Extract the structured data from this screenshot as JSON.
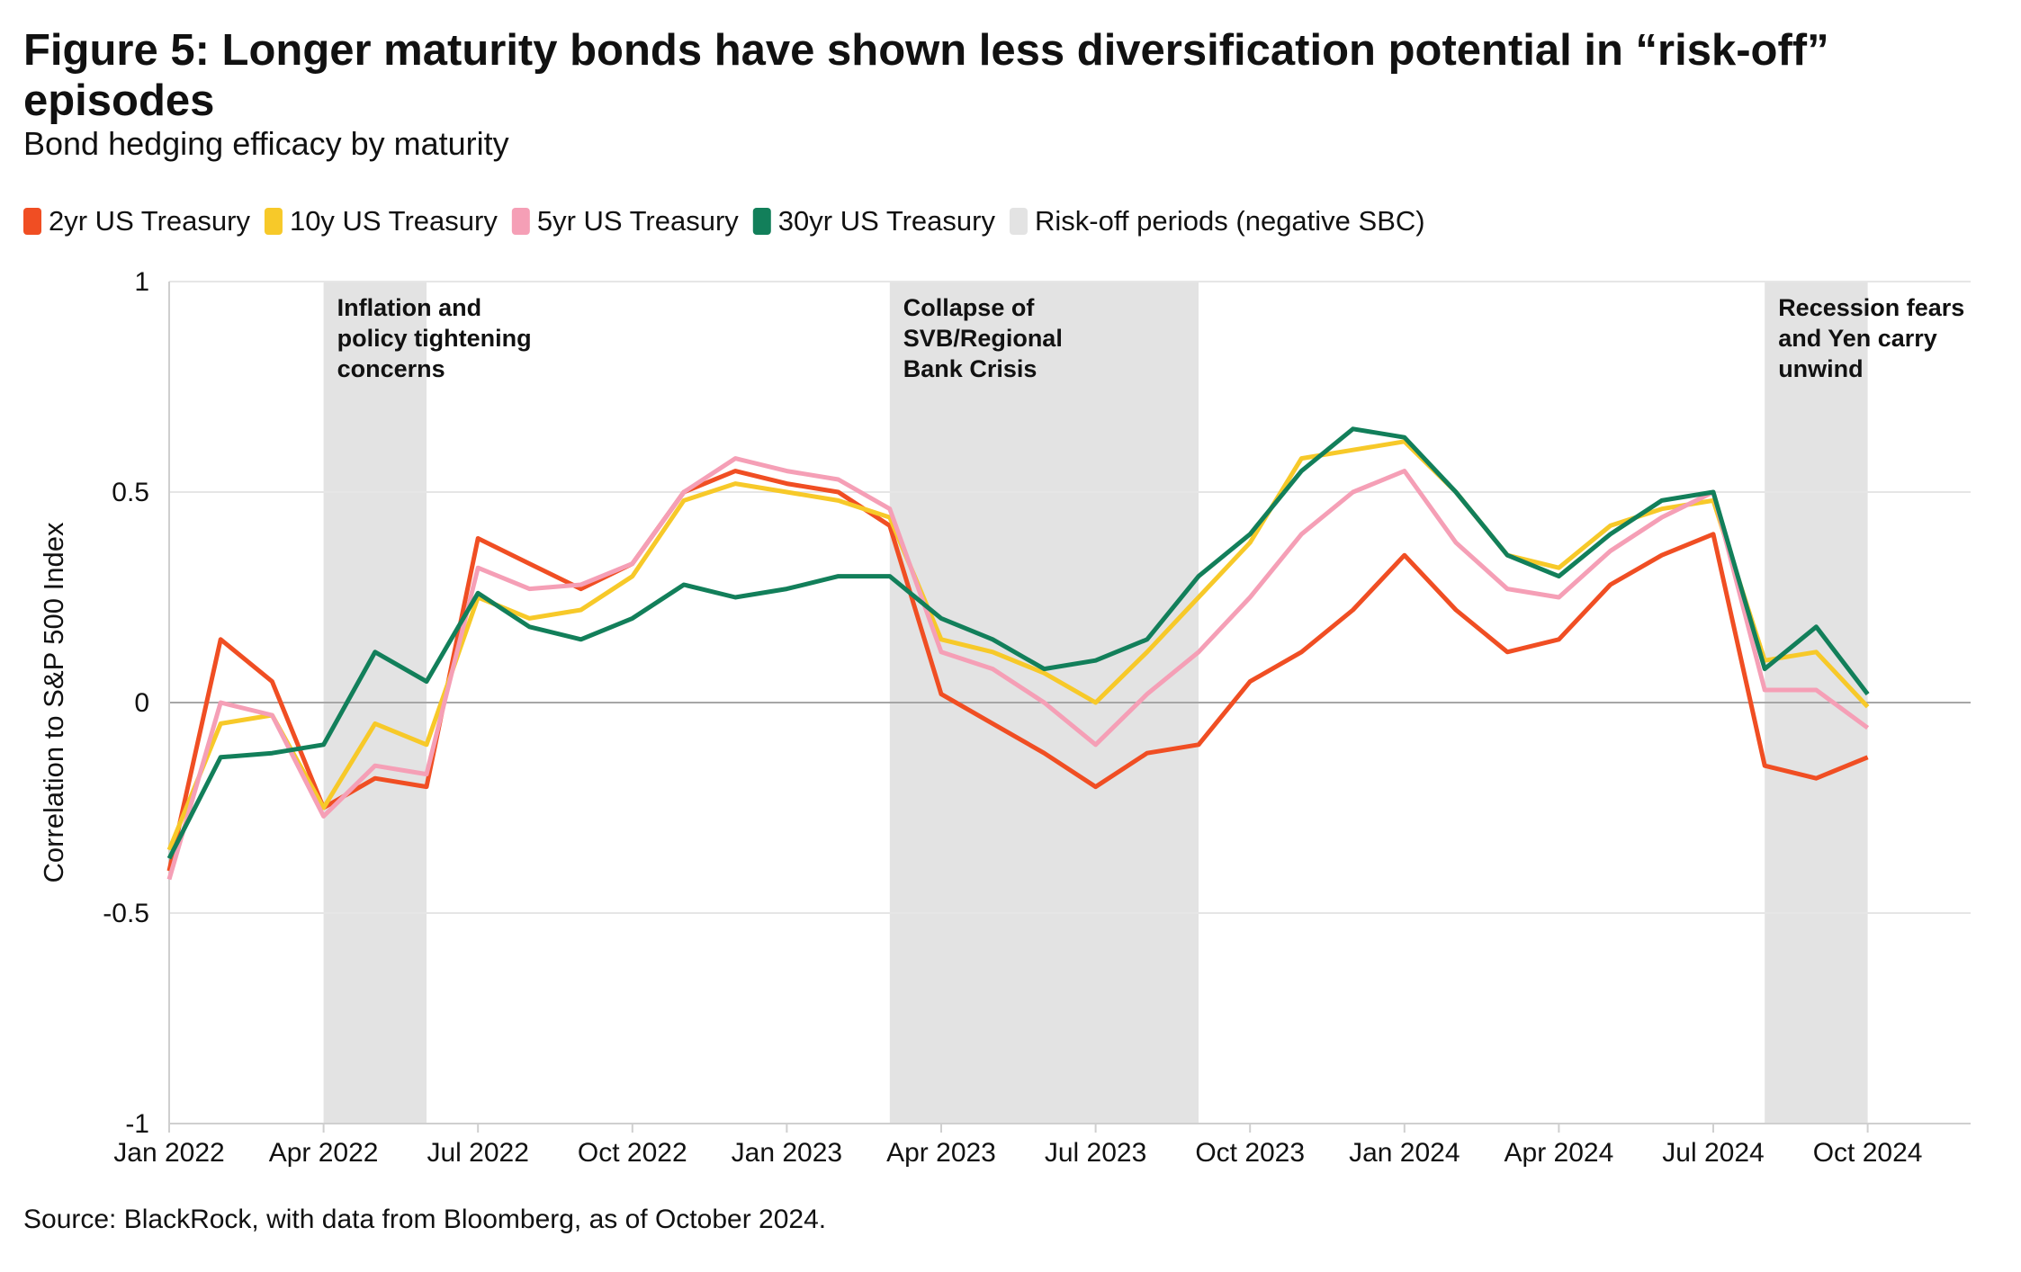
{
  "chart_data": {
    "type": "line",
    "title": "Figure 5: Longer maturity bonds have shown less diversification potential in “risk-off” episodes",
    "subtitle": "Bond hedging efficacy by maturity",
    "y_label": "Correlation to S&P 500 Index",
    "source": "Source: BlackRock, with data from Bloomberg, as of October 2024.",
    "x": [
      "2022-01",
      "2022-02",
      "2022-03",
      "2022-04",
      "2022-05",
      "2022-06",
      "2022-07",
      "2022-08",
      "2022-09",
      "2022-10",
      "2022-11",
      "2022-12",
      "2023-01",
      "2023-02",
      "2023-03",
      "2023-04",
      "2023-05",
      "2023-06",
      "2023-07",
      "2023-08",
      "2023-09",
      "2023-10",
      "2023-11",
      "2023-12",
      "2024-01",
      "2024-02",
      "2024-03",
      "2024-04",
      "2024-05",
      "2024-06",
      "2024-07",
      "2024-08",
      "2024-09",
      "2024-10"
    ],
    "series": [
      {
        "name": "2yr US Treasury",
        "color": "#f04e23",
        "values": [
          -0.4,
          0.15,
          0.05,
          -0.25,
          -0.18,
          -0.2,
          0.39,
          0.33,
          0.27,
          0.33,
          0.5,
          0.55,
          0.52,
          0.5,
          0.42,
          0.02,
          -0.05,
          -0.12,
          -0.2,
          -0.12,
          -0.1,
          0.05,
          0.12,
          0.22,
          0.35,
          0.22,
          0.12,
          0.15,
          0.28,
          0.35,
          0.4,
          -0.15,
          -0.18,
          -0.13
        ]
      },
      {
        "name": "10y US Treasury",
        "color": "#f7c929",
        "values": [
          -0.35,
          -0.05,
          -0.03,
          -0.25,
          -0.05,
          -0.1,
          0.25,
          0.2,
          0.22,
          0.3,
          0.48,
          0.52,
          0.5,
          0.48,
          0.44,
          0.15,
          0.12,
          0.07,
          0.0,
          0.12,
          0.25,
          0.38,
          0.58,
          0.6,
          0.62,
          0.5,
          0.35,
          0.32,
          0.42,
          0.46,
          0.48,
          0.1,
          0.12,
          -0.01
        ]
      },
      {
        "name": "5yr US Treasury",
        "color": "#f59fb6",
        "values": [
          -0.42,
          0.0,
          -0.03,
          -0.27,
          -0.15,
          -0.17,
          0.32,
          0.27,
          0.28,
          0.33,
          0.5,
          0.58,
          0.55,
          0.53,
          0.46,
          0.12,
          0.08,
          0.0,
          -0.1,
          0.02,
          0.12,
          0.25,
          0.4,
          0.5,
          0.55,
          0.38,
          0.27,
          0.25,
          0.36,
          0.44,
          0.5,
          0.03,
          0.03,
          -0.06
        ]
      },
      {
        "name": "30yr US Treasury",
        "color": "#127f5a",
        "values": [
          -0.37,
          -0.13,
          -0.12,
          -0.1,
          0.12,
          0.05,
          0.26,
          0.18,
          0.15,
          0.2,
          0.28,
          0.25,
          0.27,
          0.3,
          0.3,
          0.2,
          0.15,
          0.08,
          0.1,
          0.15,
          0.3,
          0.4,
          0.55,
          0.65,
          0.63,
          0.5,
          0.35,
          0.3,
          0.4,
          0.48,
          0.5,
          0.08,
          0.18,
          0.02
        ]
      }
    ],
    "risk_off_label": "Risk-off periods (negative SBC)",
    "risk_off_color": "#e3e3e3",
    "risk_off_periods": [
      {
        "start": "2022-04",
        "end": "2022-06",
        "label": [
          "Inflation and",
          "policy tightening",
          "concerns"
        ]
      },
      {
        "start": "2023-03",
        "end": "2023-09",
        "label": [
          "Collapse of",
          "SVB/Regional",
          "Bank Crisis"
        ]
      },
      {
        "start": "2024-08",
        "end": "2024-10",
        "label": [
          "Recession fears",
          "and Yen carry",
          "unwind"
        ]
      }
    ],
    "xlim": [
      "2022-01",
      "2024-12"
    ],
    "xticks": [
      {
        "value": "2022-01",
        "label": "Jan 2022"
      },
      {
        "value": "2022-04",
        "label": "Apr 2022"
      },
      {
        "value": "2022-07",
        "label": "Jul 2022"
      },
      {
        "value": "2022-10",
        "label": "Oct 2022"
      },
      {
        "value": "2023-01",
        "label": "Jan 2023"
      },
      {
        "value": "2023-04",
        "label": "Apr 2023"
      },
      {
        "value": "2023-07",
        "label": "Jul 2023"
      },
      {
        "value": "2023-10",
        "label": "Oct 2023"
      },
      {
        "value": "2024-01",
        "label": "Jan 2024"
      },
      {
        "value": "2024-04",
        "label": "Apr 2024"
      },
      {
        "value": "2024-07",
        "label": "Jul 2024"
      },
      {
        "value": "2024-10",
        "label": "Oct 2024"
      }
    ],
    "ylim": [
      -1,
      1
    ],
    "yticks": [
      -1,
      -0.5,
      0,
      0.5,
      1
    ],
    "grid": true
  }
}
